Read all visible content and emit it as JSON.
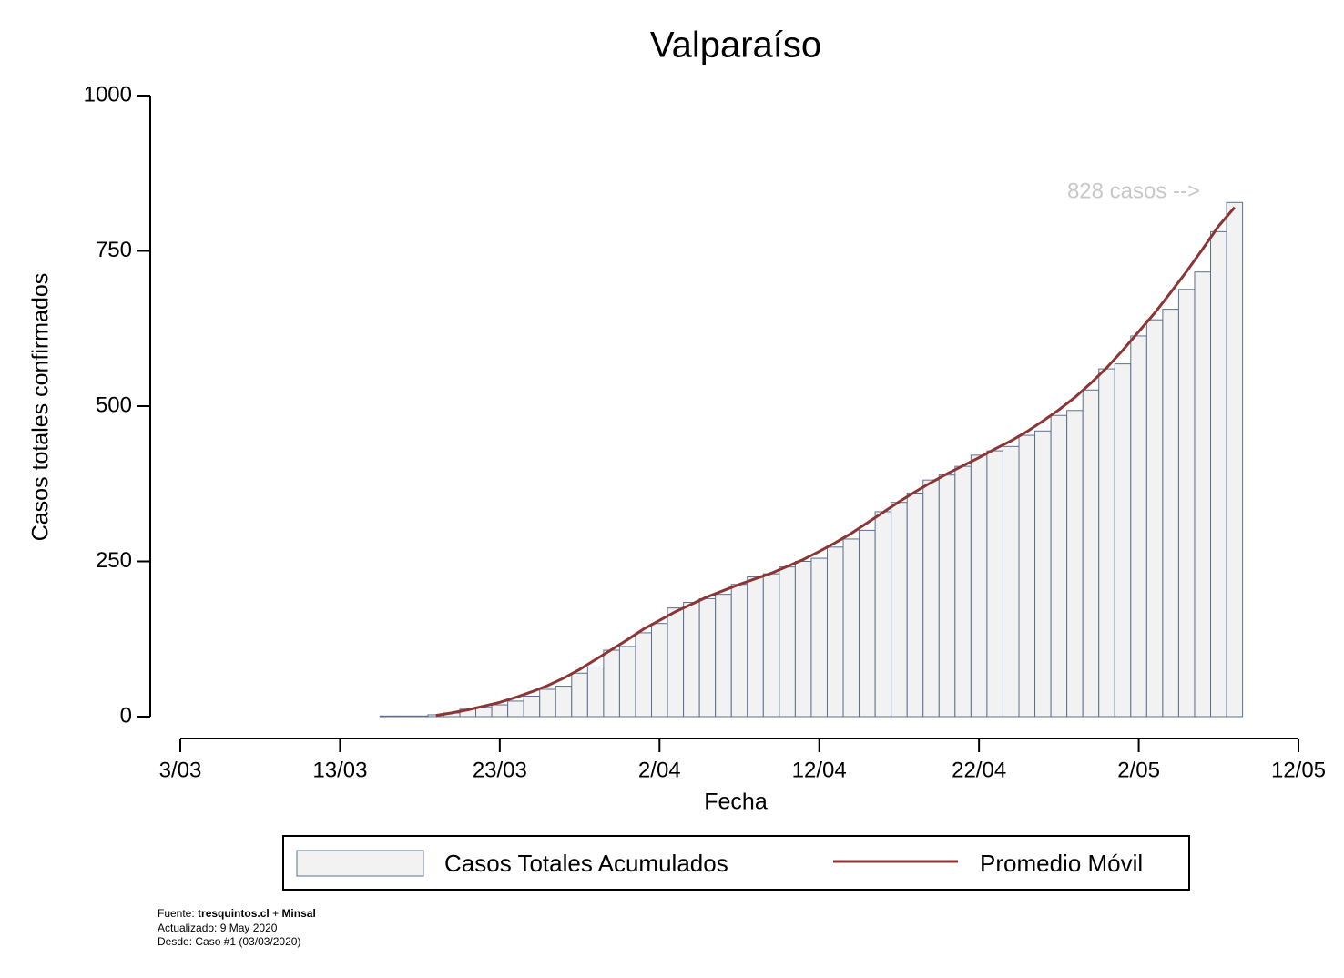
{
  "chart_data": {
    "type": "bar",
    "title": "Valparaíso",
    "x_label": "Fecha",
    "y_label": "Casos totales confirmados",
    "x": [
      "16/03",
      "17/03",
      "18/03",
      "19/03",
      "20/03",
      "21/03",
      "22/03",
      "23/03",
      "24/03",
      "25/03",
      "26/03",
      "27/03",
      "28/03",
      "29/03",
      "30/03",
      "31/03",
      "1/04",
      "2/04",
      "3/04",
      "4/04",
      "5/04",
      "6/04",
      "7/04",
      "8/04",
      "9/04",
      "10/04",
      "11/04",
      "12/04",
      "13/04",
      "14/04",
      "15/04",
      "16/04",
      "17/04",
      "18/04",
      "19/04",
      "20/04",
      "21/04",
      "22/04",
      "23/04",
      "24/04",
      "25/04",
      "26/04",
      "27/04",
      "28/04",
      "29/04",
      "30/04",
      "1/05",
      "2/05",
      "3/05",
      "4/05",
      "5/05",
      "6/05",
      "7/05",
      "8/05"
    ],
    "series": [
      {
        "name": "Casos Totales Acumulados",
        "type": "bar",
        "color": "#f2f2f2",
        "edgecolor": "#5b7090",
        "values": [
          1,
          1,
          1,
          3,
          6,
          12,
          15,
          19,
          25,
          33,
          44,
          49,
          70,
          80,
          107,
          113,
          135,
          150,
          175,
          184,
          190,
          197,
          213,
          225,
          230,
          241,
          250,
          255,
          273,
          286,
          300,
          330,
          345,
          360,
          381,
          389,
          403,
          421,
          428,
          435,
          453,
          460,
          485,
          493,
          526,
          560,
          568,
          613,
          639,
          656,
          688,
          716,
          781,
          828
        ]
      },
      {
        "name": "Promedio Móvil",
        "type": "line",
        "color": "#8b3535",
        "values": [
          null,
          null,
          null,
          2,
          6,
          11,
          17,
          23,
          31,
          40,
          50,
          62,
          76,
          92,
          108,
          124,
          141,
          155,
          169,
          181,
          193,
          203,
          213,
          222,
          231,
          242,
          253,
          266,
          280,
          295,
          312,
          329,
          346,
          362,
          377,
          391,
          404,
          417,
          431,
          444,
          459,
          476,
          494,
          514,
          537,
          562,
          590,
          620,
          650,
          683,
          717,
          753,
          790,
          820
        ]
      }
    ],
    "xlim": [
      "3/03",
      "12/05"
    ],
    "xticks": [
      "3/03",
      "13/03",
      "23/03",
      "2/04",
      "12/04",
      "22/04",
      "2/05",
      "12/05"
    ],
    "ylim": [
      0,
      1000
    ],
    "yticks": [
      0,
      250,
      500,
      750,
      1000
    ],
    "annotation": "828 casos -->",
    "footer": {
      "source_label": "Fuente:",
      "source_1": "tresquintos.cl",
      "joiner": "+",
      "source_2": "Minsal",
      "updated": "Actualizado: 9 May 2020",
      "since": "Desde: Caso #1  (03/03/2020)"
    }
  }
}
